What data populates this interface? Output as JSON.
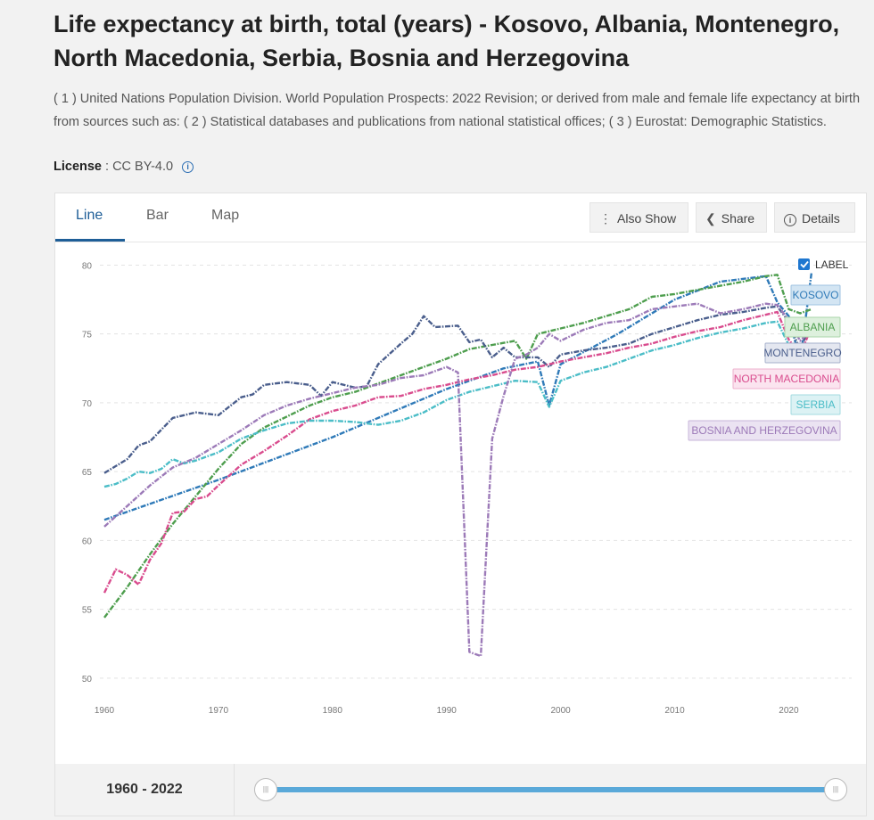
{
  "title": "Life expectancy at birth, total (years) - Kosovo, Albania, Montenegro, North Macedonia, Serbia, Bosnia and Herzegovina",
  "description": "( 1 ) United Nations Population Division. World Population Prospects: 2022 Revision; or derived from male and female life expectancy at birth from sources such as: ( 2 ) Statistical databases and publications from national statistical offices; ( 3 ) Eurostat: Demographic Statistics.",
  "license": {
    "label": "License",
    "value": ": CC BY-4.0",
    "icon": "info-icon"
  },
  "tabs": [
    {
      "label": "Line",
      "active": true
    },
    {
      "label": "Bar",
      "active": false
    },
    {
      "label": "Map",
      "active": false
    }
  ],
  "toolbar": {
    "also_show": "Also Show",
    "also_show_icon": "vertical-dots-icon",
    "share": "Share",
    "share_icon": "share-icon",
    "details": "Details",
    "details_icon": "info-icon"
  },
  "label_toggle": {
    "text": "LABEL",
    "checked": true
  },
  "range_label": "1960 - 2022",
  "chart_data": {
    "type": "line",
    "title": "",
    "xlabel": "",
    "ylabel": "",
    "xlim": [
      1960,
      2022
    ],
    "ylim": [
      48.5,
      81
    ],
    "yticks": [
      50,
      55,
      60,
      65,
      70,
      75,
      80
    ],
    "xticks": [
      1960,
      1970,
      1980,
      1990,
      2000,
      2010,
      2020
    ],
    "grid": true,
    "legend": "right",
    "series": [
      {
        "name": "KOSOVO",
        "color": "#2f7ab8",
        "bg": "#d3e5f3",
        "border": "#9fc3e0",
        "points": [
          [
            1960,
            61.5
          ],
          [
            1970,
            64.4
          ],
          [
            1980,
            67.5
          ],
          [
            1990,
            71.0
          ],
          [
            1995,
            72.5
          ],
          [
            1998,
            73.0
          ],
          [
            1999,
            69.8
          ],
          [
            2000,
            72.8
          ],
          [
            2005,
            75.0
          ],
          [
            2010,
            77.5
          ],
          [
            2014,
            78.8
          ],
          [
            2018,
            79.2
          ],
          [
            2019,
            77.3
          ],
          [
            2020,
            76.3
          ],
          [
            2021,
            73.0
          ],
          [
            2022,
            79.5
          ]
        ]
      },
      {
        "name": "ALBANIA",
        "color": "#4e9e4e",
        "bg": "#ddf0dd",
        "border": "#a9d6a9",
        "points": [
          [
            1960,
            54.4
          ],
          [
            1962,
            56.6
          ],
          [
            1964,
            59.0
          ],
          [
            1966,
            61.2
          ],
          [
            1968,
            63.2
          ],
          [
            1970,
            65.2
          ],
          [
            1972,
            67.0
          ],
          [
            1974,
            68.2
          ],
          [
            1976,
            69.0
          ],
          [
            1978,
            69.8
          ],
          [
            1980,
            70.4
          ],
          [
            1982,
            70.8
          ],
          [
            1984,
            71.4
          ],
          [
            1986,
            72.0
          ],
          [
            1988,
            72.6
          ],
          [
            1990,
            73.2
          ],
          [
            1992,
            73.9
          ],
          [
            1994,
            74.2
          ],
          [
            1996,
            74.5
          ],
          [
            1997,
            73.2
          ],
          [
            1998,
            75.0
          ],
          [
            2000,
            75.4
          ],
          [
            2002,
            75.8
          ],
          [
            2004,
            76.3
          ],
          [
            2006,
            76.8
          ],
          [
            2008,
            77.7
          ],
          [
            2010,
            77.9
          ],
          [
            2012,
            78.2
          ],
          [
            2014,
            78.5
          ],
          [
            2016,
            78.8
          ],
          [
            2018,
            79.2
          ],
          [
            2019,
            79.3
          ],
          [
            2020,
            76.8
          ],
          [
            2021,
            76.5
          ],
          [
            2022,
            76.8
          ]
        ]
      },
      {
        "name": "MONTENEGRO",
        "color": "#4a5e8c",
        "bg": "#e4e7f0",
        "border": "#a6b0cb",
        "points": [
          [
            1960,
            64.9
          ],
          [
            1962,
            65.9
          ],
          [
            1963,
            66.9
          ],
          [
            1964,
            67.2
          ],
          [
            1966,
            68.9
          ],
          [
            1968,
            69.3
          ],
          [
            1970,
            69.1
          ],
          [
            1972,
            70.4
          ],
          [
            1973,
            70.6
          ],
          [
            1974,
            71.3
          ],
          [
            1976,
            71.5
          ],
          [
            1978,
            71.3
          ],
          [
            1979,
            70.5
          ],
          [
            1980,
            71.5
          ],
          [
            1982,
            71.1
          ],
          [
            1983,
            71.2
          ],
          [
            1984,
            72.8
          ],
          [
            1986,
            74.3
          ],
          [
            1987,
            75.0
          ],
          [
            1988,
            76.3
          ],
          [
            1989,
            75.5
          ],
          [
            1991,
            75.6
          ],
          [
            1992,
            74.4
          ],
          [
            1993,
            74.6
          ],
          [
            1994,
            73.3
          ],
          [
            1995,
            74.0
          ],
          [
            1996,
            73.3
          ],
          [
            1998,
            73.3
          ],
          [
            1999,
            72.6
          ],
          [
            2000,
            73.5
          ],
          [
            2002,
            73.8
          ],
          [
            2004,
            74.0
          ],
          [
            2006,
            74.3
          ],
          [
            2008,
            75.0
          ],
          [
            2010,
            75.5
          ],
          [
            2012,
            76.0
          ],
          [
            2014,
            76.4
          ],
          [
            2016,
            76.6
          ],
          [
            2018,
            76.9
          ],
          [
            2019,
            77.0
          ],
          [
            2020,
            75.9
          ],
          [
            2021,
            73.8
          ],
          [
            2022,
            76.0
          ]
        ]
      },
      {
        "name": "NORTH MACEDONIA",
        "color": "#d94c8e",
        "bg": "#fbe4ef",
        "border": "#eeb1cc",
        "points": [
          [
            1960,
            56.2
          ],
          [
            1961,
            57.9
          ],
          [
            1962,
            57.5
          ],
          [
            1963,
            56.8
          ],
          [
            1964,
            58.6
          ],
          [
            1965,
            59.8
          ],
          [
            1966,
            62.0
          ],
          [
            1967,
            62.1
          ],
          [
            1968,
            63.0
          ],
          [
            1969,
            63.2
          ],
          [
            1970,
            64.0
          ],
          [
            1972,
            65.5
          ],
          [
            1974,
            66.5
          ],
          [
            1976,
            67.6
          ],
          [
            1978,
            68.8
          ],
          [
            1980,
            69.4
          ],
          [
            1982,
            69.8
          ],
          [
            1984,
            70.4
          ],
          [
            1986,
            70.5
          ],
          [
            1988,
            71.0
          ],
          [
            1990,
            71.3
          ],
          [
            1992,
            71.7
          ],
          [
            1994,
            72.0
          ],
          [
            1996,
            72.4
          ],
          [
            1998,
            72.6
          ],
          [
            2000,
            73.0
          ],
          [
            2002,
            73.3
          ],
          [
            2004,
            73.6
          ],
          [
            2006,
            74.0
          ],
          [
            2008,
            74.3
          ],
          [
            2010,
            74.8
          ],
          [
            2012,
            75.2
          ],
          [
            2014,
            75.5
          ],
          [
            2016,
            76.0
          ],
          [
            2018,
            76.4
          ],
          [
            2019,
            76.6
          ],
          [
            2020,
            74.6
          ],
          [
            2021,
            73.5
          ],
          [
            2022,
            75.5
          ]
        ]
      },
      {
        "name": "SERBIA",
        "color": "#4bbdc7",
        "bg": "#dcf2f4",
        "border": "#a3dbe0",
        "points": [
          [
            1960,
            63.9
          ],
          [
            1961,
            64.1
          ],
          [
            1962,
            64.5
          ],
          [
            1963,
            65.0
          ],
          [
            1964,
            64.9
          ],
          [
            1965,
            65.2
          ],
          [
            1966,
            65.9
          ],
          [
            1967,
            65.6
          ],
          [
            1968,
            65.8
          ],
          [
            1970,
            66.4
          ],
          [
            1972,
            67.4
          ],
          [
            1974,
            68.0
          ],
          [
            1976,
            68.5
          ],
          [
            1978,
            68.7
          ],
          [
            1980,
            68.7
          ],
          [
            1982,
            68.6
          ],
          [
            1984,
            68.4
          ],
          [
            1986,
            68.7
          ],
          [
            1988,
            69.3
          ],
          [
            1990,
            70.2
          ],
          [
            1992,
            70.8
          ],
          [
            1994,
            71.2
          ],
          [
            1996,
            71.6
          ],
          [
            1998,
            71.5
          ],
          [
            1999,
            69.7
          ],
          [
            2000,
            71.6
          ],
          [
            2002,
            72.2
          ],
          [
            2004,
            72.6
          ],
          [
            2006,
            73.2
          ],
          [
            2008,
            73.8
          ],
          [
            2010,
            74.2
          ],
          [
            2012,
            74.7
          ],
          [
            2014,
            75.1
          ],
          [
            2016,
            75.4
          ],
          [
            2018,
            75.8
          ],
          [
            2019,
            75.9
          ],
          [
            2020,
            74.2
          ],
          [
            2021,
            72.9
          ],
          [
            2022,
            74.2
          ]
        ]
      },
      {
        "name": "BOSNIA AND HERZEGOVINA",
        "color": "#9c7ab8",
        "bg": "#ebe3f2",
        "border": "#c7b4da",
        "points": [
          [
            1960,
            61.0
          ],
          [
            1962,
            62.5
          ],
          [
            1964,
            64.0
          ],
          [
            1966,
            65.3
          ],
          [
            1968,
            66.0
          ],
          [
            1970,
            67.0
          ],
          [
            1972,
            68.0
          ],
          [
            1974,
            69.1
          ],
          [
            1976,
            69.8
          ],
          [
            1978,
            70.3
          ],
          [
            1980,
            70.7
          ],
          [
            1982,
            71.1
          ],
          [
            1984,
            71.3
          ],
          [
            1986,
            71.8
          ],
          [
            1988,
            72.0
          ],
          [
            1990,
            72.6
          ],
          [
            1991,
            72.2
          ],
          [
            1992,
            51.9
          ],
          [
            1993,
            51.6
          ],
          [
            1994,
            67.4
          ],
          [
            1995,
            70.5
          ],
          [
            1996,
            73.2
          ],
          [
            1997,
            73.5
          ],
          [
            1998,
            74.0
          ],
          [
            1999,
            75.0
          ],
          [
            2000,
            74.5
          ],
          [
            2002,
            75.3
          ],
          [
            2004,
            75.8
          ],
          [
            2006,
            76.0
          ],
          [
            2008,
            76.8
          ],
          [
            2010,
            77.0
          ],
          [
            2012,
            77.2
          ],
          [
            2014,
            76.5
          ],
          [
            2016,
            76.8
          ],
          [
            2018,
            77.2
          ],
          [
            2019,
            77.1
          ],
          [
            2020,
            76.0
          ],
          [
            2021,
            74.5
          ],
          [
            2022,
            75.3
          ]
        ]
      }
    ]
  }
}
